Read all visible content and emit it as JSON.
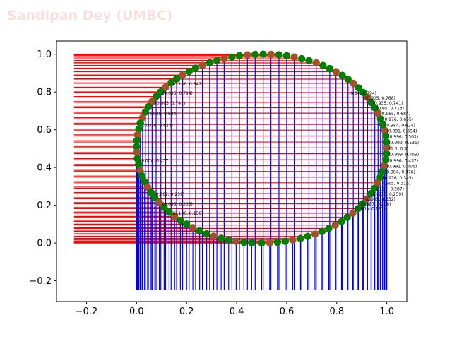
{
  "watermark": "Sandipan Dey (UMBC)",
  "colors": {
    "watermark": "#d9534f",
    "hlines": "#ff0000",
    "vlines": "#0000ff",
    "marker_green": "#008000",
    "marker_brown": "#a0522d",
    "axes": "#000000"
  },
  "chart_data": {
    "type": "scatter",
    "title": "",
    "xlabel": "",
    "ylabel": "",
    "xlim": [
      -0.32,
      1.08
    ],
    "ylim": [
      -0.31,
      1.07
    ],
    "xticks": [
      -0.2,
      0.0,
      0.2,
      0.4,
      0.6,
      0.8,
      1.0
    ],
    "yticks": [
      -0.2,
      0.0,
      0.2,
      0.4,
      0.6,
      0.8,
      1.0
    ],
    "xtick_labels": [
      "−0.2",
      "0.0",
      "0.2",
      "0.4",
      "0.6",
      "0.8",
      "1.0"
    ],
    "ytick_labels": [
      "−0.2",
      "0.0",
      "0.2",
      "0.4",
      "0.6",
      "0.8",
      "1.0"
    ],
    "grid": false,
    "hline_xmin": -0.25,
    "vline_ymin": -0.25,
    "point_labels_visible": [
      "(0.136, 0.158)",
      "(0.095, 0.206)",
      "(0.062, 0.259)",
      "(0.004, 0.437)",
      "(0.016, 0.624)",
      "(0.035, 0.684)",
      "(0.065, 0.741)",
      "(0.095, 0.794)",
      "(0.136, 0.842)",
      "(0.84, 0.794)",
      "(0.905, 0.768)",
      "(0.935, 0.741)",
      "(0.95, 0.713)",
      "(0.965, 0.684)",
      "(0.976, 0.655)",
      "(0.984, 0.624)",
      "(0.991, 0.594)",
      "(0.996, 0.563)",
      "(0.999, 0.531)",
      "(1.0, 0.5)",
      "(0.999, 0.469)",
      "(0.996, 0.437)",
      "(0.991, 0.406)",
      "(0.984, 0.376)",
      "(0.976, 0.345)",
      "(0.965, 0.316)",
      "(0.95, 0.287)",
      "(0.935, 0.259)",
      "(0.905, 0.232)",
      "(0.887, 0.206)",
      "(0.865, 0.181)"
    ],
    "series": [
      {
        "marker": "o",
        "points": [
          [
            0.5,
            0.0
          ],
          [
            0.532,
            0.001
          ],
          [
            0.563,
            0.004
          ],
          [
            0.594,
            0.009
          ],
          [
            0.624,
            0.016
          ],
          [
            0.655,
            0.024
          ],
          [
            0.684,
            0.035
          ],
          [
            0.713,
            0.047
          ],
          [
            0.741,
            0.061
          ],
          [
            0.768,
            0.077
          ],
          [
            0.794,
            0.095
          ],
          [
            0.819,
            0.114
          ],
          [
            0.842,
            0.136
          ],
          [
            0.864,
            0.158
          ],
          [
            0.885,
            0.182
          ],
          [
            0.904,
            0.208
          ],
          [
            0.921,
            0.234
          ],
          [
            0.937,
            0.262
          ],
          [
            0.951,
            0.29
          ],
          [
            0.963,
            0.319
          ],
          [
            0.974,
            0.349
          ],
          [
            0.983,
            0.379
          ],
          [
            0.99,
            0.41
          ],
          [
            0.996,
            0.441
          ],
          [
            0.999,
            0.473
          ],
          [
            1.0,
            0.504
          ],
          [
            0.999,
            0.535
          ],
          [
            0.996,
            0.567
          ],
          [
            0.991,
            0.598
          ],
          [
            0.984,
            0.628
          ],
          [
            0.975,
            0.658
          ],
          [
            0.965,
            0.688
          ],
          [
            0.952,
            0.717
          ],
          [
            0.938,
            0.745
          ],
          [
            0.923,
            0.772
          ],
          [
            0.906,
            0.797
          ],
          [
            0.887,
            0.822
          ],
          [
            0.866,
            0.846
          ],
          [
            0.845,
            0.868
          ],
          [
            0.822,
            0.888
          ],
          [
            0.797,
            0.907
          ],
          [
            0.772,
            0.924
          ],
          [
            0.745,
            0.94
          ],
          [
            0.718,
            0.954
          ],
          [
            0.689,
            0.966
          ],
          [
            0.66,
            0.976
          ],
          [
            0.63,
            0.985
          ],
          [
            0.6,
            0.992
          ],
          [
            0.569,
            0.997
          ],
          [
            0.537,
            0.999
          ],
          [
            0.506,
            1.0
          ],
          [
            0.474,
            0.999
          ],
          [
            0.443,
            0.997
          ],
          [
            0.411,
            0.992
          ],
          [
            0.381,
            0.985
          ],
          [
            0.35,
            0.976
          ],
          [
            0.321,
            0.967
          ],
          [
            0.292,
            0.955
          ],
          [
            0.263,
            0.941
          ],
          [
            0.236,
            0.926
          ],
          [
            0.21,
            0.909
          ],
          [
            0.184,
            0.89
          ],
          [
            0.16,
            0.87
          ],
          [
            0.138,
            0.848
          ],
          [
            0.116,
            0.825
          ],
          [
            0.097,
            0.801
          ],
          [
            0.078,
            0.776
          ],
          [
            0.062,
            0.749
          ],
          [
            0.047,
            0.722
          ],
          [
            0.035,
            0.694
          ],
          [
            0.024,
            0.664
          ],
          [
            0.015,
            0.635
          ],
          [
            0.009,
            0.604
          ],
          [
            0.004,
            0.573
          ],
          [
            0.001,
            0.542
          ],
          [
            0.0,
            0.51
          ],
          [
            0.001,
            0.479
          ],
          [
            0.003,
            0.447
          ],
          [
            0.008,
            0.416
          ],
          [
            0.014,
            0.385
          ],
          [
            0.022,
            0.355
          ],
          [
            0.032,
            0.325
          ],
          [
            0.044,
            0.296
          ],
          [
            0.058,
            0.268
          ],
          [
            0.073,
            0.24
          ],
          [
            0.091,
            0.214
          ],
          [
            0.11,
            0.188
          ],
          [
            0.13,
            0.164
          ],
          [
            0.152,
            0.141
          ],
          [
            0.175,
            0.12
          ],
          [
            0.2,
            0.1
          ],
          [
            0.225,
            0.081
          ],
          [
            0.252,
            0.064
          ],
          [
            0.28,
            0.049
          ],
          [
            0.308,
            0.036
          ],
          [
            0.338,
            0.025
          ],
          [
            0.368,
            0.016
          ],
          [
            0.398,
            0.009
          ],
          [
            0.429,
            0.004
          ],
          [
            0.46,
            0.001
          ]
        ]
      }
    ]
  }
}
